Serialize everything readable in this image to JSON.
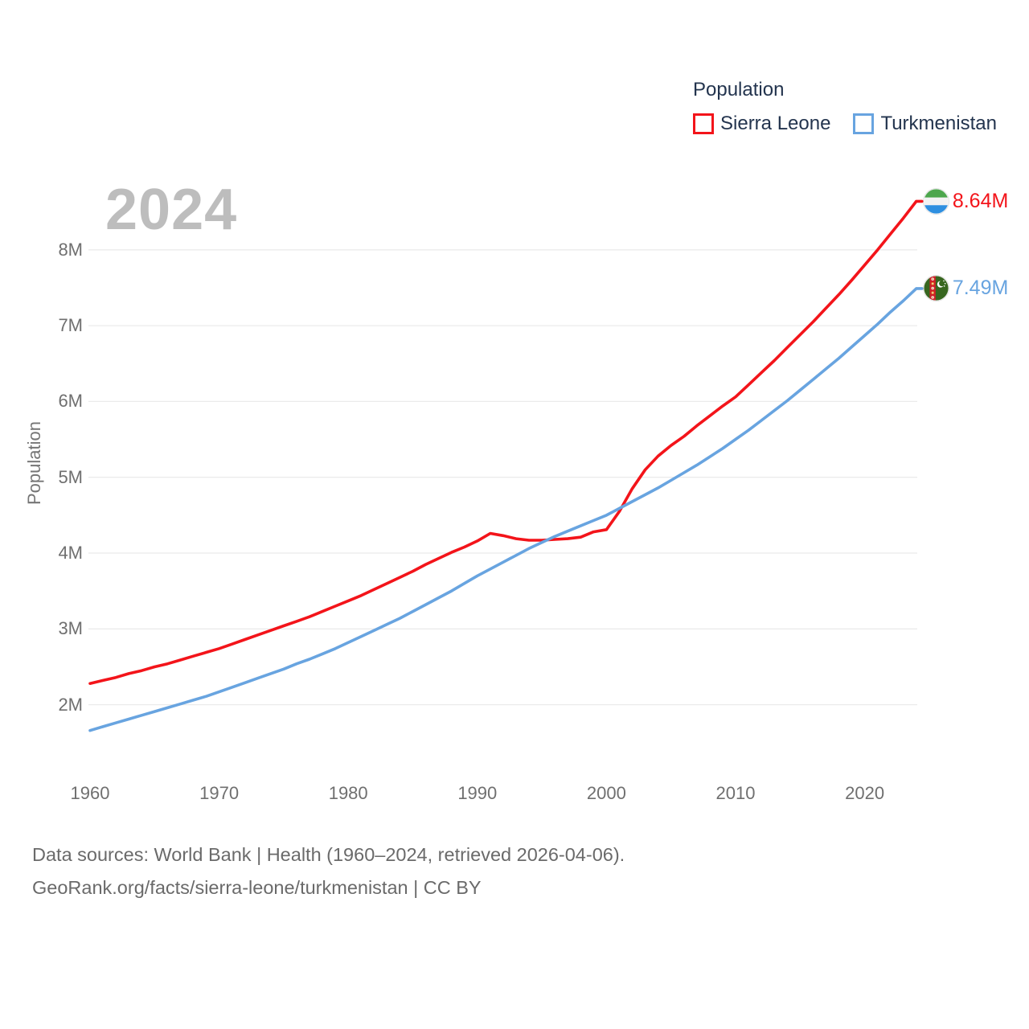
{
  "watermark": "2024",
  "legend": {
    "title": "Population",
    "series": [
      {
        "label": "Sierra Leone",
        "color": "#f3141a"
      },
      {
        "label": "Turkmenistan",
        "color": "#68a4e0"
      }
    ]
  },
  "y_axis": {
    "title": "Population",
    "ticks": [
      "2M",
      "3M",
      "4M",
      "5M",
      "6M",
      "7M",
      "8M"
    ]
  },
  "x_axis": {
    "ticks": [
      "1960",
      "1970",
      "1980",
      "1990",
      "2000",
      "2010",
      "2020"
    ]
  },
  "footer": {
    "line1": "Data sources: World Bank | Health (1960–2024, retrieved 2026-04-06).",
    "line2": "GeoRank.org/facts/sierra-leone/turkmenistan | CC BY"
  },
  "colors": {
    "sierra_leone": "#f3141a",
    "turkmenistan": "#68a4e0",
    "gridline": "#ebebeb",
    "tick_text": "#6f6f6f",
    "legend_text": "#23344e",
    "watermark": "#bdbdbd",
    "footer_text": "#6a6a6a"
  },
  "chart_data": {
    "type": "line",
    "title": "2024",
    "ylabel": "Population",
    "xlabel": "",
    "x_range": [
      1960,
      2024
    ],
    "y_ticks_millions": [
      2,
      3,
      4,
      5,
      6,
      7,
      8
    ],
    "grid": "horizontal-only",
    "legend_position": "top-right",
    "years": [
      1960,
      1961,
      1962,
      1963,
      1964,
      1965,
      1966,
      1967,
      1968,
      1969,
      1970,
      1971,
      1972,
      1973,
      1974,
      1975,
      1976,
      1977,
      1978,
      1979,
      1980,
      1981,
      1982,
      1983,
      1984,
      1985,
      1986,
      1987,
      1988,
      1989,
      1990,
      1991,
      1992,
      1993,
      1994,
      1995,
      1996,
      1997,
      1998,
      1999,
      2000,
      2001,
      2002,
      2003,
      2004,
      2005,
      2006,
      2007,
      2008,
      2009,
      2010,
      2011,
      2012,
      2013,
      2014,
      2015,
      2016,
      2017,
      2018,
      2019,
      2020,
      2021,
      2022,
      2023,
      2024
    ],
    "series": [
      {
        "name": "Sierra Leone",
        "color": "#f3141a",
        "end_label": "8.64M",
        "flag": "sierra-leone-flag",
        "values_millions": [
          2.28,
          2.32,
          2.36,
          2.41,
          2.45,
          2.5,
          2.54,
          2.59,
          2.64,
          2.69,
          2.74,
          2.8,
          2.86,
          2.92,
          2.98,
          3.04,
          3.1,
          3.16,
          3.23,
          3.3,
          3.37,
          3.44,
          3.52,
          3.6,
          3.68,
          3.76,
          3.85,
          3.93,
          4.01,
          4.08,
          4.16,
          4.26,
          4.23,
          4.19,
          4.17,
          4.17,
          4.18,
          4.19,
          4.21,
          4.28,
          4.31,
          4.55,
          4.85,
          5.1,
          5.28,
          5.42,
          5.54,
          5.68,
          5.81,
          5.94,
          6.06,
          6.22,
          6.38,
          6.54,
          6.71,
          6.88,
          7.05,
          7.23,
          7.41,
          7.6,
          7.8,
          8.0,
          8.21,
          8.42,
          8.64
        ]
      },
      {
        "name": "Turkmenistan",
        "color": "#68a4e0",
        "end_label": "7.49M",
        "flag": "turkmenistan-flag",
        "values_millions": [
          1.66,
          1.71,
          1.76,
          1.81,
          1.86,
          1.91,
          1.96,
          2.01,
          2.06,
          2.11,
          2.17,
          2.23,
          2.29,
          2.35,
          2.41,
          2.47,
          2.54,
          2.6,
          2.67,
          2.74,
          2.82,
          2.9,
          2.98,
          3.06,
          3.14,
          3.23,
          3.32,
          3.41,
          3.5,
          3.6,
          3.7,
          3.79,
          3.88,
          3.97,
          4.06,
          4.14,
          4.22,
          4.29,
          4.36,
          4.43,
          4.5,
          4.59,
          4.68,
          4.77,
          4.86,
          4.96,
          5.06,
          5.16,
          5.27,
          5.38,
          5.5,
          5.62,
          5.75,
          5.88,
          6.01,
          6.15,
          6.29,
          6.43,
          6.57,
          6.72,
          6.87,
          7.02,
          7.18,
          7.33,
          7.49
        ]
      }
    ]
  }
}
